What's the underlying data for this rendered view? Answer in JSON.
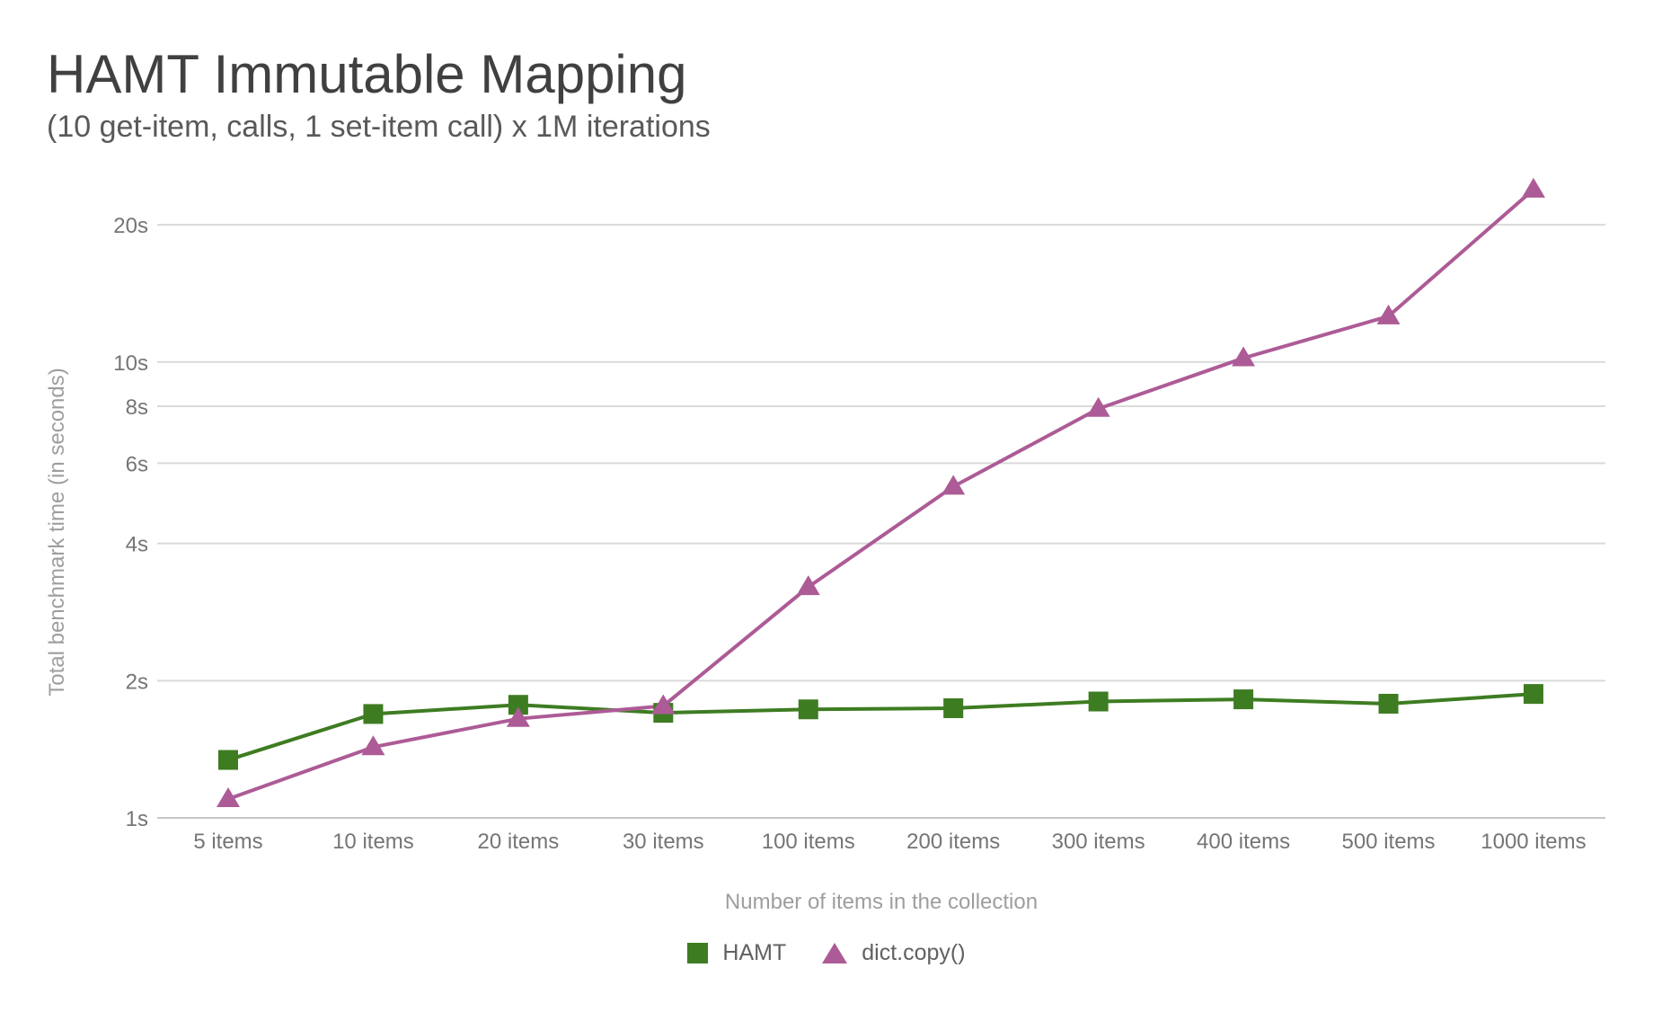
{
  "chart_data": {
    "type": "line",
    "title": "HAMT Immutable Mapping",
    "subtitle": "(10 get-item, calls, 1 set-item call) x 1M iterations",
    "xlabel": "Number of items in the collection",
    "ylabel": "Total benchmark time (in seconds)",
    "categories": [
      "5 items",
      "10 items",
      "20 items",
      "30 items",
      "100 items",
      "200 items",
      "300 items",
      "400 items",
      "500 items",
      "1000 items"
    ],
    "series": [
      {
        "name": "HAMT",
        "marker": "square",
        "color": "#3e7c22",
        "values": [
          1.34,
          1.69,
          1.77,
          1.7,
          1.73,
          1.74,
          1.8,
          1.82,
          1.78,
          1.87
        ]
      },
      {
        "name": "dict.copy()",
        "marker": "triangle",
        "color": "#ad5b96",
        "values": [
          1.1,
          1.43,
          1.65,
          1.76,
          3.21,
          5.33,
          7.9,
          10.2,
          12.6,
          23.9
        ]
      }
    ],
    "y_axis": {
      "scale": "log",
      "range": [
        1,
        25
      ],
      "ticks": [
        {
          "value": 1,
          "label": "1s"
        },
        {
          "value": 2,
          "label": "2s"
        },
        {
          "value": 4,
          "label": "4s"
        },
        {
          "value": 6,
          "label": "6s"
        },
        {
          "value": 8,
          "label": "8s"
        },
        {
          "value": 10,
          "label": "10s"
        },
        {
          "value": 20,
          "label": "20s"
        }
      ]
    },
    "grid": true,
    "legend_position": "bottom",
    "colors": {
      "grid": "#dadada",
      "axis_line": "#c6c6c6",
      "tick_text": "#757575",
      "axis_title_text": "#9e9e9e",
      "title_text": "#404040",
      "subtitle_text": "#595959",
      "legend_text": "#616161",
      "background": "#ffffff"
    }
  }
}
